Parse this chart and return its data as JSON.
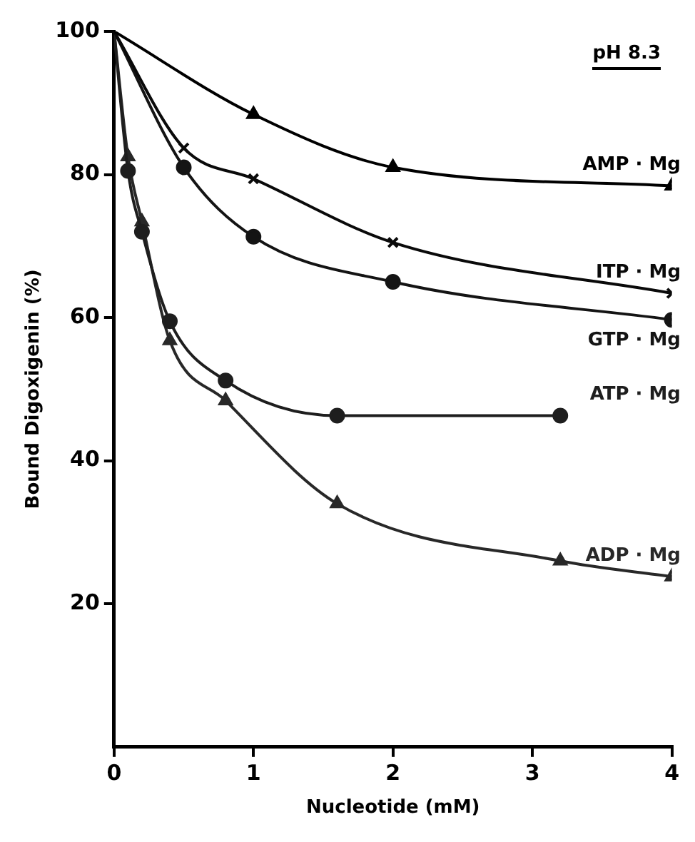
{
  "chart_data": {
    "type": "line",
    "xlabel": "Nucleotide (mM)",
    "ylabel": "Bound Digoxigenin (%)",
    "annotations": [
      "pH 8.3"
    ],
    "xlim": [
      0,
      4
    ],
    "ylim": [
      0,
      100
    ],
    "xticks": [
      0,
      1,
      2,
      3,
      4
    ],
    "yticks": [
      20,
      40,
      60,
      80,
      100
    ],
    "grid": false,
    "legend": false,
    "series": [
      {
        "name": "AMP · Mg",
        "color": "#000000",
        "marker": "triangle",
        "x": [
          0,
          1,
          2,
          4
        ],
        "values": [
          100,
          88.4,
          81,
          78.4
        ]
      },
      {
        "name": "ITP · Mg",
        "color": "#0a0a0a",
        "marker": "cross",
        "x": [
          0,
          0.5,
          1,
          2,
          4
        ],
        "values": [
          100,
          83.7,
          79.4,
          70.5,
          63.4
        ]
      },
      {
        "name": "GTP · Mg",
        "color": "#141414",
        "marker": "circle",
        "x": [
          0,
          0.5,
          1,
          2,
          4
        ],
        "values": [
          100,
          81,
          71.3,
          65,
          59.7
        ]
      },
      {
        "name": "ATP · Mg",
        "color": "#1e1e1e",
        "marker": "circle",
        "x": [
          0,
          0.1,
          0.2,
          0.4,
          0.8,
          1.6,
          3.2
        ],
        "values": [
          100,
          80.5,
          72,
          59.5,
          51.2,
          46.3,
          46.3
        ]
      },
      {
        "name": "ADP · Mg",
        "color": "#282828",
        "marker": "triangle",
        "x": [
          0,
          0.1,
          0.2,
          0.4,
          0.8,
          1.6,
          3.2,
          4
        ],
        "values": [
          100,
          82.5,
          73.4,
          56.8,
          48.4,
          34,
          26,
          23.8
        ]
      }
    ]
  }
}
